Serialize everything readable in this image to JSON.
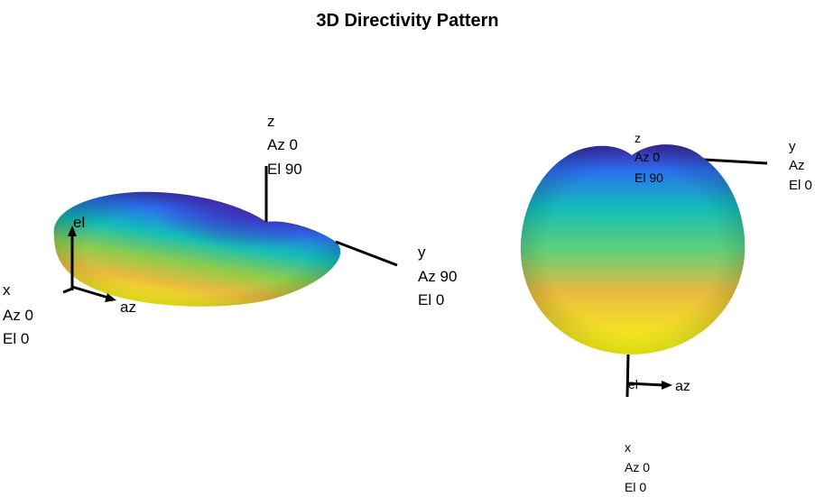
{
  "chart_data": {
    "type": "3d-surface",
    "title": "3D Directivity Pattern",
    "colormap": "parula",
    "views": [
      {
        "name": "view-oblique",
        "axes": [
          {
            "id": "x",
            "lines": [
              "x",
              "Az 0",
              "El 0"
            ]
          },
          {
            "id": "y",
            "lines": [
              "y",
              "Az 90",
              "El 0"
            ]
          },
          {
            "id": "z",
            "lines": [
              "z",
              "Az 0",
              "El 90"
            ]
          }
        ],
        "local_axes": {
          "el": "el",
          "az": "az"
        }
      },
      {
        "name": "view-front",
        "axes": [
          {
            "id": "x",
            "lines": [
              "x",
              "Az 0",
              "El 0"
            ]
          },
          {
            "id": "y",
            "lines": [
              "y",
              "Az",
              "El 0"
            ]
          },
          {
            "id": "z",
            "lines": [
              "z",
              "Az 0",
              "El 90"
            ]
          }
        ],
        "local_axes": {
          "el": "el",
          "az": "az"
        }
      }
    ]
  },
  "colors": {
    "parula_low": "#3e26a8",
    "parula_mid": "#12bdb9",
    "parula_high": "#f9fb15",
    "axis": "#000000"
  }
}
